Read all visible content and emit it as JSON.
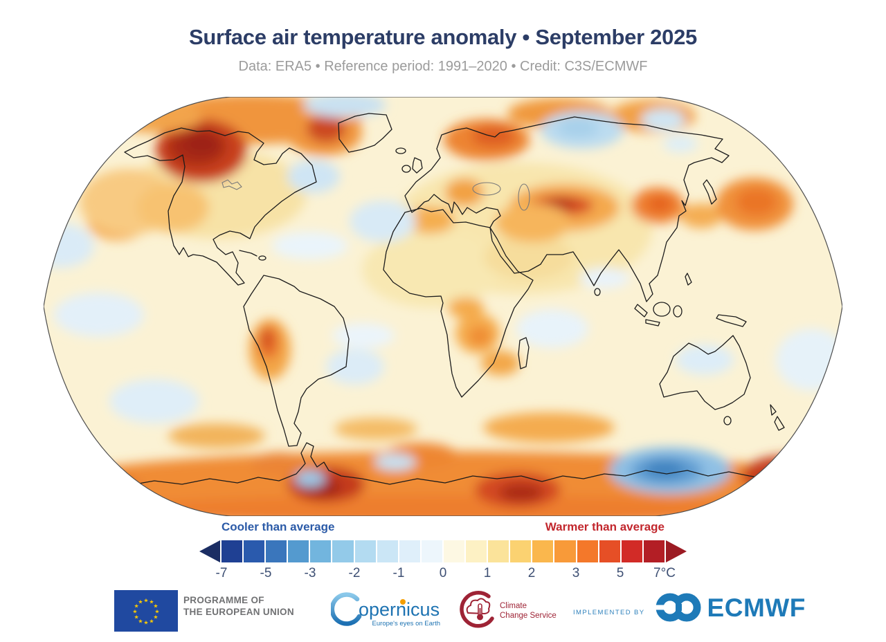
{
  "header": {
    "title": "Surface air temperature anomaly • September 2025",
    "subtitle": "Data: ERA5 • Reference period: 1991–2020 • Credit: C3S/ECMWF"
  },
  "map": {
    "projection": "robinson-world-map",
    "anomaly_field": "surface air temperature anomaly shading"
  },
  "legend": {
    "cooler_label": "Cooler than average",
    "warmer_label": "Warmer than average",
    "cooler_color": "#2B5AA7",
    "warmer_color": "#C2272D",
    "left_arrow_color": "#1B2D63",
    "right_arrow_color": "#9C1B23",
    "segments": [
      "#1F4093",
      "#2A5AAD",
      "#3A76BC",
      "#549ACF",
      "#72B5DE",
      "#93CAE9",
      "#B3DBF1",
      "#CBE6F6",
      "#DFEFFA",
      "#EDF6FC",
      "#FDF8E3",
      "#FDF1C4",
      "#FBE39A",
      "#FBD271",
      "#FAB74D",
      "#F89A39",
      "#F4782A",
      "#E64F26",
      "#D22B27",
      "#B31E25"
    ],
    "ticks": [
      "-7",
      "-5",
      "-3",
      "-2",
      "-1",
      "0",
      "1",
      "2",
      "3",
      "5",
      "7°C"
    ]
  },
  "footer": {
    "eu": {
      "line1": "PROGRAMME OF",
      "line2": "THE EUROPEAN UNION"
    },
    "copernicus": {
      "name": "opernicus",
      "tagline": "Europe's eyes on Earth"
    },
    "c3s": {
      "line1": "Climate",
      "line2": "Change Service"
    },
    "ecmwf": {
      "implemented_by": "IMPLEMENTED BY",
      "name": "ECMWF"
    }
  }
}
